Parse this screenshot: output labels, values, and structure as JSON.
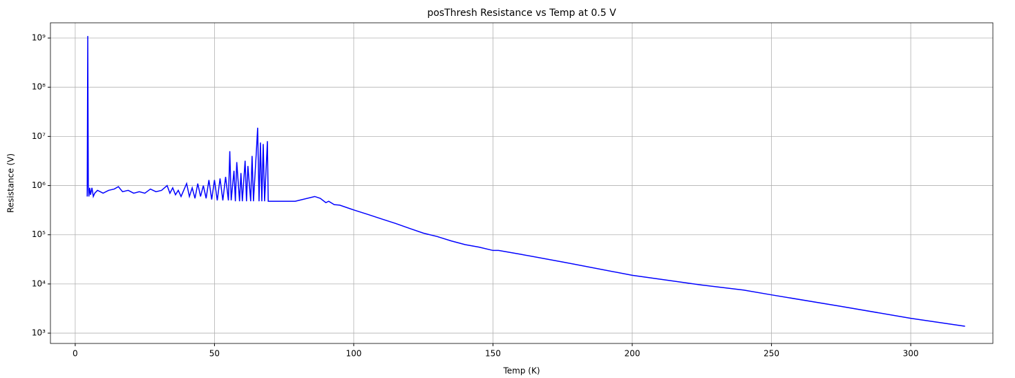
{
  "chart_data": {
    "type": "line",
    "title": "posThresh Resistance vs Temp at 0.5 V",
    "x_label": "Temp (K)",
    "y_label": "Resistance (V)",
    "color": "#0000ff",
    "grid": true,
    "yscale": "log",
    "xlim": [
      -8.9,
      329.5
    ],
    "xticks": [
      0,
      50,
      100,
      150,
      200,
      250,
      300
    ],
    "ylim": [
      617,
      2040000000
    ],
    "yticks": [
      {
        "value": 1000,
        "label": "10³"
      },
      {
        "value": 10000,
        "label": "10⁴"
      },
      {
        "value": 100000,
        "label": "10⁵"
      },
      {
        "value": 1000000,
        "label": "10⁶"
      },
      {
        "value": 10000000,
        "label": "10⁷"
      },
      {
        "value": 100000000,
        "label": "10⁸"
      },
      {
        "value": 1000000000,
        "label": "10⁹"
      }
    ],
    "x": [
      4.3,
      4.5,
      4.7,
      4.9,
      5.2,
      5.5,
      6,
      6.5,
      7,
      8,
      9,
      10,
      12,
      14,
      15.5,
      17,
      19,
      21,
      23,
      25,
      27,
      29,
      31,
      33,
      34,
      35,
      36,
      37,
      38,
      40,
      41,
      42,
      43,
      44,
      45,
      46,
      47,
      48,
      49,
      50,
      51,
      52,
      53,
      54,
      55,
      55.5,
      56,
      57,
      57.5,
      58,
      59,
      59.5,
      60,
      61,
      61.5,
      62,
      63,
      63.5,
      64,
      65,
      65.5,
      66,
      66.5,
      67,
      67.5,
      68,
      69,
      69.3,
      70,
      79,
      86,
      88,
      90,
      91,
      93,
      95,
      100,
      105,
      110,
      115,
      120,
      125,
      130,
      135,
      140,
      145,
      150,
      152,
      160,
      175,
      200,
      225,
      240,
      250,
      275,
      300,
      319.5
    ],
    "values": [
      600000,
      1100000000,
      1000000,
      600000,
      900000,
      650000,
      900000,
      600000,
      700000,
      800000,
      750000,
      700000,
      800000,
      850000,
      950000,
      750000,
      800000,
      700000,
      750000,
      700000,
      850000,
      750000,
      800000,
      1000000,
      700000,
      900000,
      650000,
      800000,
      600000,
      1100000,
      600000,
      900000,
      550000,
      1100000,
      600000,
      1000000,
      550000,
      1300000,
      520000,
      1300000,
      500000,
      1400000,
      500000,
      1500000,
      500000,
      5000000,
      500000,
      2000000,
      480000,
      3000000,
      480000,
      1800000,
      480000,
      3200000,
      480000,
      2500000,
      480000,
      4000000,
      480000,
      4500000,
      15000000,
      480000,
      7500000,
      480000,
      7000000,
      480000,
      8000000,
      480000,
      480000,
      480000,
      600000,
      550000,
      450000,
      480000,
      410000,
      400000,
      320000,
      260000,
      210000,
      170000,
      135000,
      108000,
      92000,
      75000,
      63000,
      56000,
      48000,
      48000,
      40000,
      28000,
      15000,
      9500,
      7500,
      6000,
      3500,
      2000,
      1380
    ]
  }
}
